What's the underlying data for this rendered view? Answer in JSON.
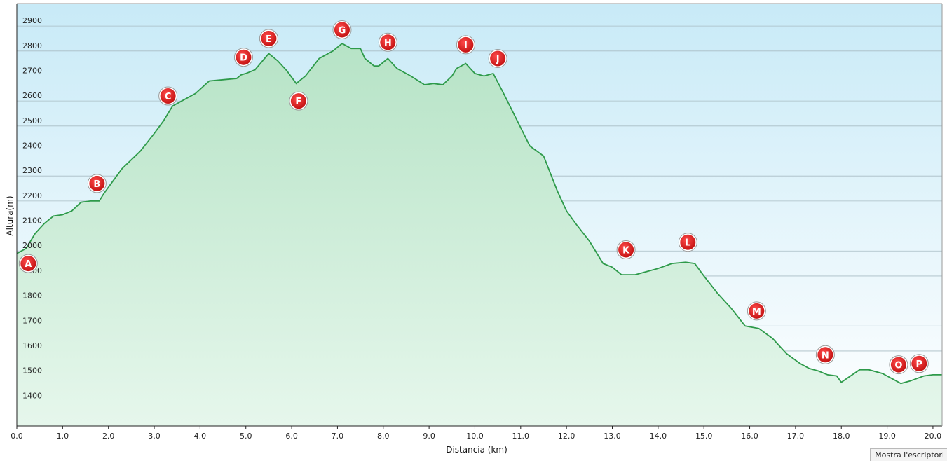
{
  "footer": {
    "desktop_button_label": "Mostra l'escriptori"
  },
  "chart_data": {
    "type": "area",
    "xlabel": "Distancia  (km)",
    "ylabel": "Altura(m)",
    "xlim": [
      0,
      20.2
    ],
    "ylim": [
      1300,
      2990
    ],
    "x_ticks": [
      "0.0",
      "1.0",
      "2.0",
      "3.0",
      "4.0",
      "5.0",
      "6.0",
      "7.0",
      "8.0",
      "9.0",
      "10.0",
      "11.0",
      "12.0",
      "13.0",
      "14.0",
      "15.0",
      "16.0",
      "17.0",
      "18.0",
      "19.0",
      "20.0"
    ],
    "y_ticks": [
      "1400",
      "1500",
      "1600",
      "1700",
      "1800",
      "1900",
      "2000",
      "2100",
      "2200",
      "2300",
      "2400",
      "2500",
      "2600",
      "2700",
      "2800",
      "2900"
    ],
    "grid": true,
    "colors": {
      "line": "#2e9a4a",
      "fill_top": "#b6e3c6",
      "fill_bottom": "#e6f7ec",
      "bg_top": "#c8eaf7",
      "bg_bottom": "#ffffff",
      "marker": "#d21a1a"
    },
    "profile": {
      "x": [
        0,
        0.2,
        0.4,
        0.6,
        0.8,
        1.0,
        1.2,
        1.4,
        1.6,
        1.8,
        1.9,
        2.1,
        2.3,
        2.5,
        2.7,
        3.0,
        3.2,
        3.4,
        3.6,
        3.9,
        4.2,
        4.5,
        4.8,
        4.9,
        5.0,
        5.2,
        5.5,
        5.7,
        5.9,
        6.1,
        6.3,
        6.6,
        6.9,
        7.1,
        7.3,
        7.5,
        7.6,
        7.8,
        7.9,
        8.1,
        8.3,
        8.6,
        8.9,
        9.1,
        9.3,
        9.5,
        9.6,
        9.8,
        10.0,
        10.2,
        10.4,
        10.6,
        10.9,
        11.2,
        11.5,
        11.8,
        12.0,
        12.2,
        12.5,
        12.8,
        13.0,
        13.2,
        13.5,
        13.8,
        14.0,
        14.3,
        14.6,
        14.8,
        15.0,
        15.3,
        15.6,
        15.9,
        16.2,
        16.5,
        16.8,
        17.1,
        17.3,
        17.5,
        17.7,
        17.9,
        18.0,
        18.2,
        18.4,
        18.6,
        18.9,
        19.1,
        19.3,
        19.5,
        19.8,
        20.0,
        20.2
      ],
      "y": [
        1990,
        2010,
        2070,
        2110,
        2140,
        2145,
        2160,
        2195,
        2200,
        2200,
        2230,
        2280,
        2330,
        2365,
        2400,
        2470,
        2520,
        2580,
        2600,
        2630,
        2680,
        2685,
        2690,
        2705,
        2710,
        2725,
        2790,
        2760,
        2720,
        2670,
        2700,
        2770,
        2800,
        2830,
        2810,
        2810,
        2770,
        2740,
        2740,
        2770,
        2730,
        2700,
        2665,
        2670,
        2665,
        2700,
        2730,
        2750,
        2710,
        2700,
        2710,
        2640,
        2530,
        2420,
        2380,
        2240,
        2160,
        2110,
        2040,
        1950,
        1935,
        1905,
        1905,
        1920,
        1930,
        1950,
        1955,
        1950,
        1900,
        1830,
        1770,
        1700,
        1690,
        1650,
        1590,
        1550,
        1530,
        1520,
        1505,
        1500,
        1475,
        1500,
        1525,
        1525,
        1510,
        1490,
        1470,
        1480,
        1500,
        1505,
        1505
      ]
    },
    "waypoints": [
      {
        "label": "A",
        "x": 0.25,
        "y": 1950
      },
      {
        "label": "B",
        "x": 1.75,
        "y": 2270
      },
      {
        "label": "C",
        "x": 3.3,
        "y": 2620
      },
      {
        "label": "D",
        "x": 4.95,
        "y": 2775
      },
      {
        "label": "E",
        "x": 5.5,
        "y": 2850
      },
      {
        "label": "F",
        "x": 6.15,
        "y": 2600
      },
      {
        "label": "G",
        "x": 7.1,
        "y": 2885
      },
      {
        "label": "H",
        "x": 8.1,
        "y": 2835
      },
      {
        "label": "I",
        "x": 9.8,
        "y": 2825
      },
      {
        "label": "J",
        "x": 10.5,
        "y": 2770
      },
      {
        "label": "K",
        "x": 13.3,
        "y": 2005
      },
      {
        "label": "L",
        "x": 14.65,
        "y": 2035
      },
      {
        "label": "M",
        "x": 16.15,
        "y": 1760
      },
      {
        "label": "N",
        "x": 17.65,
        "y": 1585
      },
      {
        "label": "O",
        "x": 19.25,
        "y": 1545
      },
      {
        "label": "P",
        "x": 19.7,
        "y": 1550
      }
    ]
  }
}
